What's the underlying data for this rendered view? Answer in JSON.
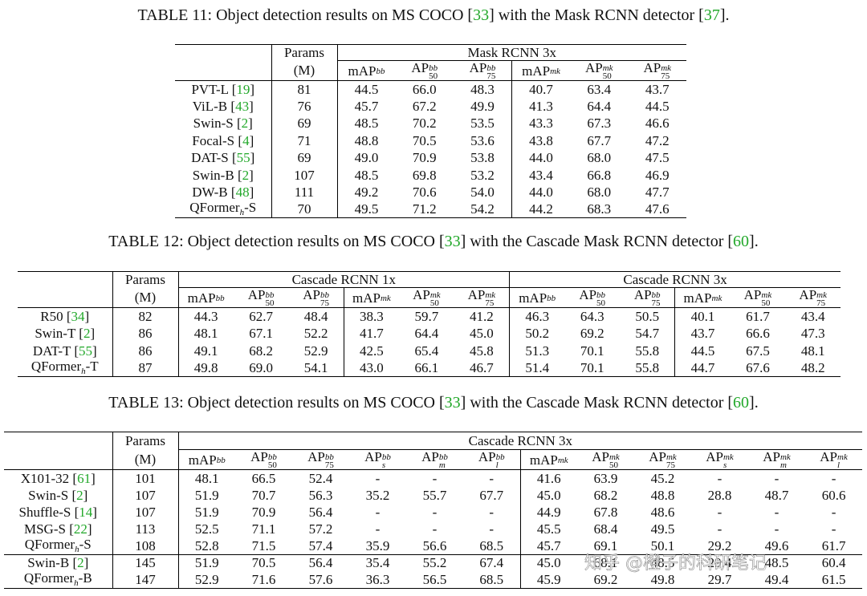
{
  "tables": [
    {
      "caption": "TABLE 11: Object detection results on MS COCO [33] with the Mask RCNN detector [37].",
      "params_header": [
        "Params",
        "(M)"
      ],
      "groups": [
        "Mask RCNN 3x"
      ],
      "columns": [
        {
          "text": "mAP",
          "sup": "bb"
        },
        {
          "text": "AP",
          "sup": "bb",
          "sub": "50"
        },
        {
          "text": "AP",
          "sup": "bb",
          "sub": "75"
        },
        {
          "text": "mAP",
          "sup": "mk"
        },
        {
          "text": "AP",
          "sup": "mk",
          "sub": "50"
        },
        {
          "text": "AP",
          "sup": "mk",
          "sub": "75"
        }
      ],
      "rows": [
        {
          "label": "PVT-L [19]",
          "params": "81",
          "values": [
            "44.5",
            "66.0",
            "48.3",
            "40.7",
            "63.4",
            "43.7"
          ]
        },
        {
          "label": "ViL-B [43]",
          "params": "76",
          "values": [
            "45.7",
            "67.2",
            "49.9",
            "41.3",
            "64.4",
            "44.5"
          ]
        },
        {
          "label": "Swin-S [2]",
          "params": "69",
          "values": [
            "48.5",
            "70.2",
            "53.5",
            "43.3",
            "67.3",
            "46.6"
          ]
        },
        {
          "label": "Focal-S [4]",
          "params": "71",
          "values": [
            "48.8",
            "70.5",
            "53.6",
            "43.8",
            "67.7",
            "47.2"
          ]
        },
        {
          "label": "DAT-S [55]",
          "params": "69",
          "values": [
            "49.0",
            "70.9",
            "53.8",
            "44.0",
            "68.0",
            "47.5"
          ]
        },
        {
          "label": "Swin-B [2]",
          "params": "107",
          "values": [
            "48.5",
            "69.8",
            "53.2",
            "43.4",
            "66.8",
            "46.9"
          ]
        },
        {
          "label": "DW-B [48]",
          "params": "111",
          "values": [
            "49.2",
            "70.6",
            "54.0",
            "44.0",
            "68.0",
            "47.7"
          ]
        },
        {
          "label": {
            "text": "QFormer",
            "sub": "h",
            "after": "-S"
          },
          "params": "70",
          "values": [
            "49.5",
            "71.2",
            "54.2",
            "44.2",
            "68.3",
            "47.6"
          ]
        }
      ]
    },
    {
      "caption": "TABLE 12: Object detection results on MS COCO [33] with the Cascade Mask RCNN detector [60].",
      "params_header": [
        "Params",
        "(M)"
      ],
      "groups": [
        "Cascade RCNN 1x",
        "Cascade RCNN 3x"
      ],
      "columns": [
        {
          "text": "mAP",
          "sup": "bb"
        },
        {
          "text": "AP",
          "sup": "bb",
          "sub": "50"
        },
        {
          "text": "AP",
          "sup": "bb",
          "sub": "75"
        },
        {
          "text": "mAP",
          "sup": "mk"
        },
        {
          "text": "AP",
          "sup": "mk",
          "sub": "50"
        },
        {
          "text": "AP",
          "sup": "mk",
          "sub": "75"
        },
        {
          "text": "mAP",
          "sup": "bb"
        },
        {
          "text": "AP",
          "sup": "bb",
          "sub": "50"
        },
        {
          "text": "AP",
          "sup": "bb",
          "sub": "75"
        },
        {
          "text": "mAP",
          "sup": "mk"
        },
        {
          "text": "AP",
          "sup": "mk",
          "sub": "50"
        },
        {
          "text": "AP",
          "sup": "mk",
          "sub": "75"
        }
      ],
      "rows": [
        {
          "label": "R50 [34]",
          "params": "82",
          "values": [
            "44.3",
            "62.7",
            "48.4",
            "38.3",
            "59.7",
            "41.2",
            "46.3",
            "64.3",
            "50.5",
            "40.1",
            "61.7",
            "43.4"
          ]
        },
        {
          "label": "Swin-T [2]",
          "params": "86",
          "values": [
            "48.1",
            "67.1",
            "52.2",
            "41.7",
            "64.4",
            "45.0",
            "50.2",
            "69.2",
            "54.7",
            "43.7",
            "66.6",
            "47.3"
          ]
        },
        {
          "label": "DAT-T [55]",
          "params": "86",
          "values": [
            "49.1",
            "68.2",
            "52.9",
            "42.5",
            "65.4",
            "45.8",
            "51.3",
            "70.1",
            "55.8",
            "44.5",
            "67.5",
            "48.1"
          ]
        },
        {
          "label": {
            "text": "QFormer",
            "sub": "h",
            "after": "-T"
          },
          "params": "87",
          "values": [
            "49.8",
            "69.0",
            "54.1",
            "43.0",
            "66.1",
            "46.7",
            "51.4",
            "70.1",
            "55.8",
            "44.7",
            "67.6",
            "48.2"
          ]
        }
      ]
    },
    {
      "caption": "TABLE 13: Object detection results on MS COCO [33] with the Cascade Mask RCNN detector [60].",
      "params_header": [
        "Params",
        "(M)"
      ],
      "groups": [
        "Cascade RCNN 3x"
      ],
      "columns": [
        {
          "text": "mAP",
          "sup": "bb"
        },
        {
          "text": "AP",
          "sup": "bb",
          "sub": "50"
        },
        {
          "text": "AP",
          "sup": "bb",
          "sub": "75"
        },
        {
          "text": "AP",
          "sup": "bb",
          "sub": "s"
        },
        {
          "text": "AP",
          "sup": "bb",
          "sub": "m"
        },
        {
          "text": "AP",
          "sup": "bb",
          "sub": "l"
        },
        {
          "text": "mAP",
          "sup": "mk"
        },
        {
          "text": "AP",
          "sup": "mk",
          "sub": "50"
        },
        {
          "text": "AP",
          "sup": "mk",
          "sub": "75"
        },
        {
          "text": "AP",
          "sup": "mk",
          "sub": "s"
        },
        {
          "text": "AP",
          "sup": "mk",
          "sub": "m"
        },
        {
          "text": "AP",
          "sup": "mk",
          "sub": "l"
        }
      ],
      "rows": [
        {
          "label": "X101-32 [61]",
          "params": "101",
          "values": [
            "48.1",
            "66.5",
            "52.4",
            "-",
            "-",
            "-",
            "41.6",
            "63.9",
            "45.2",
            "-",
            "-",
            "-"
          ]
        },
        {
          "label": "Swin-S [2]",
          "params": "107",
          "values": [
            "51.9",
            "70.7",
            "56.3",
            "35.2",
            "55.7",
            "67.7",
            "45.0",
            "68.2",
            "48.8",
            "28.8",
            "48.7",
            "60.6"
          ]
        },
        {
          "label": "Shuffle-S [14]",
          "params": "107",
          "values": [
            "51.9",
            "70.9",
            "56.4",
            "-",
            "-",
            "-",
            "44.9",
            "67.8",
            "48.6",
            "-",
            "-",
            "-"
          ]
        },
        {
          "label": "MSG-S [22]",
          "params": "113",
          "values": [
            "52.5",
            "71.1",
            "57.2",
            "-",
            "-",
            "-",
            "45.5",
            "68.4",
            "49.5",
            "-",
            "-",
            "-"
          ]
        },
        {
          "label": {
            "text": "QFormer",
            "sub": "h",
            "after": "-S"
          },
          "params": "108",
          "values": [
            "52.8",
            "71.5",
            "57.4",
            "35.9",
            "56.6",
            "68.5",
            "45.7",
            "69.1",
            "50.1",
            "29.2",
            "49.6",
            "61.7"
          ]
        },
        {
          "label": "Swin-B [2]",
          "params": "145",
          "values": [
            "51.9",
            "70.5",
            "56.4",
            "35.4",
            "55.2",
            "67.4",
            "45.0",
            "68.1",
            "48.5",
            "29.4",
            "48.5",
            "60.4"
          ]
        },
        {
          "label": {
            "text": "QFormer",
            "sub": "h",
            "after": "-B"
          },
          "params": "147",
          "values": [
            "52.9",
            "71.6",
            "57.6",
            "36.3",
            "56.5",
            "68.5",
            "45.9",
            "69.2",
            "49.8",
            "29.7",
            "49.4",
            "61.5"
          ]
        }
      ]
    }
  ],
  "watermark": "知乎 @橙子的科研笔记"
}
